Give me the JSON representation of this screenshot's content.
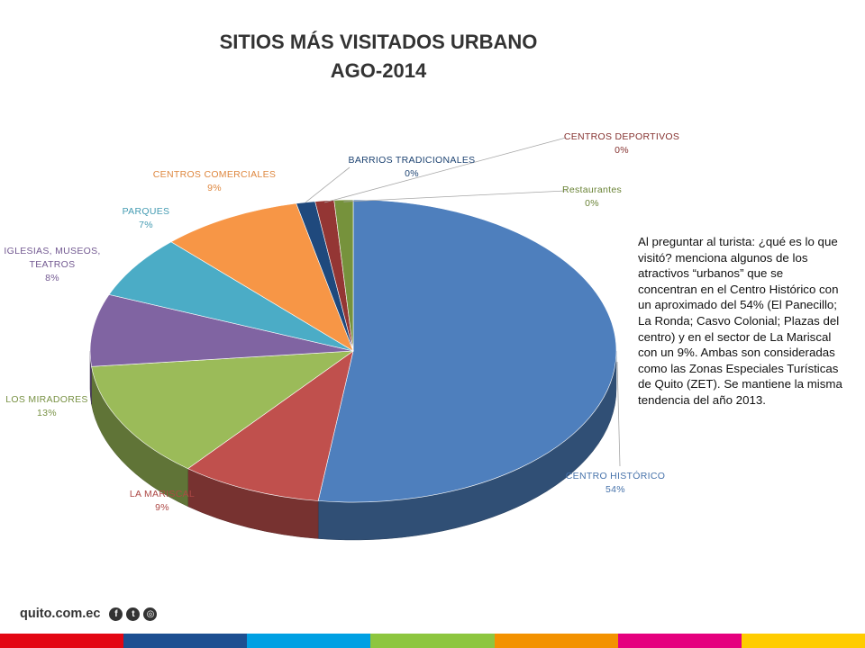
{
  "chart_data": {
    "type": "pie",
    "title_line1": "SITIOS MÁS VISITADOS URBANO",
    "title_line2": "AGO-2014",
    "slices": [
      {
        "label": "CENTRO HISTÓRICO",
        "value": 54,
        "value_label": "54%",
        "color": "#4e7fbd"
      },
      {
        "label": "LA MARISCAL",
        "value": 9,
        "value_label": "9%",
        "color": "#c0504d"
      },
      {
        "label": "LOS MIRADORES",
        "value": 13,
        "value_label": "13%",
        "color": "#9bbb59"
      },
      {
        "label": "IGLESIAS, MUSEOS, TEATROS",
        "value": 8,
        "value_label": "8%",
        "color": "#8064a2"
      },
      {
        "label": "PARQUES",
        "value": 7,
        "value_label": "7%",
        "color": "#4bacc6"
      },
      {
        "label": "CENTROS COMERCIALES",
        "value": 9,
        "value_label": "9%",
        "color": "#f79646"
      },
      {
        "label": "BARRIOS TRADICIONALES",
        "value": 0,
        "value_label": "0%",
        "color": "#1f497d"
      },
      {
        "label": "CENTROS DEPORTIVOS",
        "value": 0,
        "value_label": "0%",
        "color": "#943634"
      },
      {
        "label": "Restaurantes",
        "value": 0,
        "value_label": "0%",
        "color": "#76923c"
      }
    ],
    "style": "3d-pie"
  },
  "description": "Al preguntar al turista: ¿qué es lo que visitó? menciona algunos de los atractivos “urbanos” que se concentran en el Centro Histórico con un aproximado del 54% (El Panecillo; La Ronda; Casvo Colonial; Plazas del centro) y en el sector de La Mariscal con un 9%. Ambas son consideradas como las Zonas Especiales Turísticas de Quito (ZET). Se mantiene la misma tendencia del año 2013.",
  "footer": {
    "brand": "quito.com.ec",
    "social_icons": [
      "facebook-icon",
      "twitter-icon",
      "instagram-icon"
    ],
    "stripe_colors": [
      "#e30613",
      "#1d4f91",
      "#00a0e3",
      "#8dc63f",
      "#f39200",
      "#e5007e",
      "#ffcc00"
    ]
  }
}
